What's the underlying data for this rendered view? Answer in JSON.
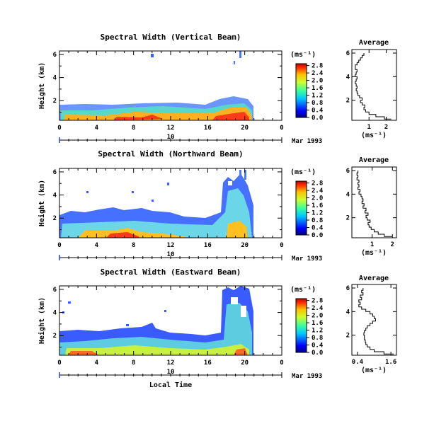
{
  "chart_data": [
    {
      "type": "heatmap",
      "title": "Spectral Width (Vertical Beam)",
      "ylabel": "Height (km)",
      "x_ticks": [
        "0",
        "4",
        "8",
        "12",
        "16",
        "20",
        "0"
      ],
      "y_ticks": [
        "2",
        "4",
        "6"
      ],
      "xlim": [
        0,
        24
      ],
      "ylim": [
        0.3,
        6.3
      ],
      "date_day": "10",
      "date_label": "Mar 1993",
      "colorbar": {
        "unit": "(ms⁻¹)",
        "ticks": [
          "0.0",
          "0.4",
          "0.8",
          "1.2",
          "1.6",
          "2.0",
          "2.4",
          "2.8"
        ],
        "range": [
          0,
          2.9
        ]
      },
      "profile": {
        "title": "Average",
        "xlabel": "(ms⁻¹)",
        "x_ticks": [
          "1",
          "2"
        ],
        "xlim": [
          0,
          2.6
        ],
        "y_ticks": [
          "2",
          "4",
          "6"
        ],
        "ylim": [
          0.3,
          6.3
        ],
        "heights": [
          0.4,
          0.6,
          0.8,
          1.0,
          1.2,
          1.4,
          1.6,
          1.8,
          2.0,
          2.2,
          2.4,
          2.6,
          2.8,
          3.0,
          3.2,
          3.4,
          3.6,
          3.8,
          4.0,
          4.2,
          4.4,
          4.6,
          4.8,
          5.0,
          5.2,
          5.4,
          5.6,
          5.8,
          6.0
        ],
        "values": [
          2.3,
          1.9,
          1.4,
          1.0,
          0.8,
          0.7,
          0.75,
          0.6,
          0.5,
          0.6,
          0.45,
          0.35,
          0.3,
          0.25,
          0.3,
          0.25,
          0.2,
          0.25,
          0.3,
          0.2,
          0.25,
          0.3,
          0.2,
          0.2,
          0.3,
          0.4,
          0.5,
          0.6,
          0.7
        ]
      }
    },
    {
      "type": "heatmap",
      "title": "Spectral Width (Northward Beam)",
      "ylabel": "Height (km)",
      "x_ticks": [
        "0",
        "4",
        "8",
        "12",
        "16",
        "20",
        "0"
      ],
      "y_ticks": [
        "2",
        "4",
        "6"
      ],
      "xlim": [
        0,
        24
      ],
      "ylim": [
        0.3,
        6.3
      ],
      "date_day": "10",
      "date_label": "Mar 1993",
      "colorbar": {
        "unit": "(ms⁻¹)",
        "ticks": [
          "0.0",
          "0.4",
          "0.8",
          "1.2",
          "1.6",
          "2.0",
          "2.4",
          "2.8"
        ],
        "range": [
          0,
          2.9
        ]
      },
      "profile": {
        "title": "Average",
        "xlabel": "(ms⁻¹)",
        "x_ticks": [
          "1",
          "2"
        ],
        "xlim": [
          0,
          2.2
        ],
        "y_ticks": [
          "2",
          "4",
          "6"
        ],
        "ylim": [
          0.3,
          6.3
        ],
        "heights": [
          0.4,
          0.6,
          0.8,
          1.0,
          1.2,
          1.4,
          1.6,
          1.8,
          2.0,
          2.2,
          2.4,
          2.6,
          2.8,
          3.0,
          3.2,
          3.4,
          3.6,
          3.8,
          4.0,
          4.2,
          4.4,
          4.6,
          4.8,
          5.0,
          5.2,
          5.4,
          5.6,
          5.8,
          6.0
        ],
        "values": [
          2.0,
          1.6,
          1.3,
          1.1,
          0.95,
          0.85,
          0.8,
          0.9,
          0.75,
          0.7,
          0.8,
          0.65,
          0.7,
          0.55,
          0.6,
          0.5,
          0.55,
          0.5,
          0.45,
          0.35,
          0.4,
          0.3,
          0.35,
          0.3,
          0.35,
          0.25,
          0.3,
          0.25,
          0.3
        ]
      }
    },
    {
      "type": "heatmap",
      "title": "Spectral Width (Eastward Beam)",
      "ylabel": "Height (km)",
      "x_ticks": [
        "0",
        "4",
        "8",
        "12",
        "16",
        "20",
        "0"
      ],
      "y_ticks": [
        "2",
        "4",
        "6"
      ],
      "xlim": [
        0,
        24
      ],
      "ylim": [
        0.3,
        6.3
      ],
      "date_day": "10",
      "date_label": "Mar 1993",
      "xlabel": "Local Time",
      "colorbar": {
        "unit": "(ms⁻¹)",
        "ticks": [
          "0.0",
          "0.4",
          "0.8",
          "1.2",
          "1.6",
          "2.0",
          "2.4",
          "2.8"
        ],
        "range": [
          0,
          2.9
        ]
      },
      "profile": {
        "title": "Average",
        "xlabel": "(ms⁻¹)",
        "x_ticks": [
          "0.4",
          "1.6"
        ],
        "xlim": [
          0.2,
          1.8
        ],
        "y_ticks": [
          "2",
          "4",
          "6"
        ],
        "ylim": [
          0.3,
          6.3
        ],
        "heights": [
          0.4,
          0.6,
          0.8,
          1.0,
          1.2,
          1.4,
          1.6,
          1.8,
          2.0,
          2.2,
          2.4,
          2.6,
          2.8,
          3.0,
          3.2,
          3.4,
          3.6,
          3.8,
          4.0,
          4.2,
          4.4,
          4.6,
          4.8,
          5.0,
          5.2,
          5.4,
          5.6,
          5.8,
          6.0
        ],
        "values": [
          1.7,
          1.35,
          1.0,
          0.85,
          0.75,
          0.7,
          0.68,
          0.65,
          0.65,
          0.63,
          0.65,
          0.7,
          0.75,
          0.85,
          0.95,
          1.05,
          1.0,
          0.95,
          0.85,
          0.7,
          0.55,
          0.45,
          0.5,
          0.45,
          0.55,
          0.5,
          0.6,
          0.55,
          0.6
        ]
      }
    }
  ]
}
